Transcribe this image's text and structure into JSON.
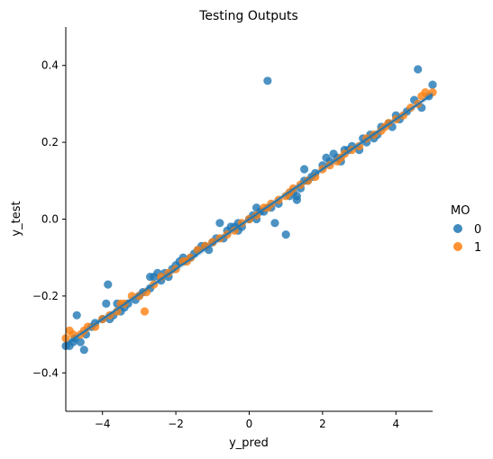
{
  "chart_data": {
    "type": "scatter",
    "title": "Testing Outputs",
    "xlabel": "y_pred",
    "ylabel": "y_test",
    "xlim": [
      -5,
      5
    ],
    "ylim": [
      -0.5,
      0.5
    ],
    "xticks": [
      -4,
      -2,
      0,
      2,
      4
    ],
    "xtick_labels": [
      "−4",
      "−2",
      "0",
      "2",
      "4"
    ],
    "yticks": [
      -0.4,
      -0.2,
      0.0,
      0.2,
      0.4
    ],
    "ytick_labels": [
      "−0.4",
      "−0.2",
      "0.0",
      "0.2",
      "0.4"
    ],
    "grid": false,
    "legend": {
      "title": "MO",
      "placement": "right"
    },
    "series": [
      {
        "name": "0",
        "color": "#1f77b4",
        "points": [
          [
            -5.0,
            -0.33
          ],
          [
            -4.9,
            -0.33
          ],
          [
            -4.8,
            -0.32
          ],
          [
            -4.75,
            -0.31
          ],
          [
            -4.7,
            -0.25
          ],
          [
            -4.6,
            -0.32
          ],
          [
            -4.5,
            -0.34
          ],
          [
            -4.45,
            -0.3
          ],
          [
            -4.3,
            -0.28
          ],
          [
            -4.2,
            -0.27
          ],
          [
            -4.0,
            -0.26
          ],
          [
            -3.9,
            -0.22
          ],
          [
            -3.85,
            -0.17
          ],
          [
            -3.8,
            -0.26
          ],
          [
            -3.7,
            -0.25
          ],
          [
            -3.6,
            -0.22
          ],
          [
            -3.5,
            -0.24
          ],
          [
            -3.4,
            -0.23
          ],
          [
            -3.3,
            -0.22
          ],
          [
            -3.1,
            -0.21
          ],
          [
            -3.0,
            -0.2
          ],
          [
            -2.9,
            -0.19
          ],
          [
            -2.7,
            -0.18
          ],
          [
            -2.6,
            -0.15
          ],
          [
            -2.5,
            -0.14
          ],
          [
            -2.4,
            -0.16
          ],
          [
            -2.3,
            -0.14
          ],
          [
            -2.2,
            -0.15
          ],
          [
            -2.1,
            -0.13
          ],
          [
            -2.0,
            -0.12
          ],
          [
            -1.9,
            -0.11
          ],
          [
            -1.8,
            -0.1
          ],
          [
            -1.6,
            -0.1
          ],
          [
            -1.5,
            -0.09
          ],
          [
            -1.4,
            -0.08
          ],
          [
            -1.2,
            -0.07
          ],
          [
            -1.1,
            -0.08
          ],
          [
            -1.0,
            -0.06
          ],
          [
            -0.9,
            -0.05
          ],
          [
            -0.8,
            -0.01
          ],
          [
            -0.7,
            -0.05
          ],
          [
            -0.6,
            -0.03
          ],
          [
            -0.5,
            -0.02
          ],
          [
            -0.4,
            -0.02
          ],
          [
            -0.3,
            -0.01
          ],
          [
            -0.2,
            -0.02
          ],
          [
            0.0,
            0.0
          ],
          [
            0.1,
            0.01
          ],
          [
            0.2,
            0.0
          ],
          [
            0.3,
            0.02
          ],
          [
            0.4,
            0.02
          ],
          [
            0.5,
            0.36
          ],
          [
            0.6,
            0.03
          ],
          [
            0.7,
            -0.01
          ],
          [
            0.8,
            0.04
          ],
          [
            1.0,
            -0.04
          ],
          [
            1.1,
            0.06
          ],
          [
            1.2,
            0.07
          ],
          [
            1.3,
            0.05
          ],
          [
            1.4,
            0.08
          ],
          [
            1.5,
            0.13
          ],
          [
            1.6,
            0.1
          ],
          [
            1.7,
            0.11
          ],
          [
            1.8,
            0.12
          ],
          [
            2.0,
            0.14
          ],
          [
            2.1,
            0.16
          ],
          [
            2.2,
            0.15
          ],
          [
            2.4,
            0.16
          ],
          [
            2.5,
            0.15
          ],
          [
            2.7,
            0.18
          ],
          [
            2.8,
            0.19
          ],
          [
            3.0,
            0.18
          ],
          [
            3.1,
            0.21
          ],
          [
            3.2,
            0.2
          ],
          [
            3.4,
            0.21
          ],
          [
            3.5,
            0.22
          ],
          [
            3.6,
            0.24
          ],
          [
            3.8,
            0.25
          ],
          [
            3.9,
            0.24
          ],
          [
            4.0,
            0.27
          ],
          [
            4.1,
            0.26
          ],
          [
            4.3,
            0.28
          ],
          [
            4.5,
            0.31
          ],
          [
            4.6,
            0.39
          ],
          [
            4.7,
            0.29
          ],
          [
            4.9,
            0.32
          ],
          [
            5.0,
            0.35
          ],
          [
            0.2,
            0.03
          ],
          [
            1.3,
            0.06
          ],
          [
            1.5,
            0.1
          ],
          [
            2.6,
            0.18
          ],
          [
            2.3,
            0.17
          ],
          [
            3.3,
            0.22
          ],
          [
            -0.3,
            -0.03
          ],
          [
            -1.3,
            -0.07
          ],
          [
            -2.7,
            -0.15
          ]
        ]
      },
      {
        "name": "1",
        "color": "#ff7f0e",
        "points": [
          [
            -5.0,
            -0.31
          ],
          [
            -4.9,
            -0.29
          ],
          [
            -4.8,
            -0.3
          ],
          [
            -4.6,
            -0.3
          ],
          [
            -4.5,
            -0.29
          ],
          [
            -4.4,
            -0.28
          ],
          [
            -4.2,
            -0.28
          ],
          [
            -4.0,
            -0.26
          ],
          [
            -3.8,
            -0.25
          ],
          [
            -3.6,
            -0.24
          ],
          [
            -3.4,
            -0.22
          ],
          [
            -3.2,
            -0.2
          ],
          [
            -3.0,
            -0.2
          ],
          [
            -2.85,
            -0.24
          ],
          [
            -2.8,
            -0.19
          ],
          [
            -2.6,
            -0.17
          ],
          [
            -2.4,
            -0.15
          ],
          [
            -2.2,
            -0.14
          ],
          [
            -2.0,
            -0.13
          ],
          [
            -1.8,
            -0.11
          ],
          [
            -1.6,
            -0.1
          ],
          [
            -1.4,
            -0.08
          ],
          [
            -1.2,
            -0.07
          ],
          [
            -1.0,
            -0.06
          ],
          [
            -0.8,
            -0.05
          ],
          [
            -0.6,
            -0.04
          ],
          [
            -0.4,
            -0.03
          ],
          [
            -0.2,
            -0.01
          ],
          [
            0.0,
            0.0
          ],
          [
            0.2,
            0.01
          ],
          [
            0.4,
            0.03
          ],
          [
            0.6,
            0.04
          ],
          [
            0.8,
            0.05
          ],
          [
            1.0,
            0.06
          ],
          [
            1.2,
            0.08
          ],
          [
            1.4,
            0.09
          ],
          [
            1.6,
            0.1
          ],
          [
            1.8,
            0.11
          ],
          [
            2.0,
            0.13
          ],
          [
            2.2,
            0.14
          ],
          [
            2.4,
            0.15
          ],
          [
            2.6,
            0.17
          ],
          [
            2.8,
            0.18
          ],
          [
            3.0,
            0.19
          ],
          [
            3.2,
            0.21
          ],
          [
            3.4,
            0.22
          ],
          [
            3.6,
            0.23
          ],
          [
            3.8,
            0.25
          ],
          [
            4.0,
            0.26
          ],
          [
            4.2,
            0.27
          ],
          [
            4.4,
            0.29
          ],
          [
            4.6,
            0.3
          ],
          [
            4.7,
            0.32
          ],
          [
            4.8,
            0.33
          ],
          [
            5.0,
            0.33
          ],
          [
            -3.5,
            -0.22
          ],
          [
            -1.7,
            -0.11
          ],
          [
            0.5,
            0.03
          ],
          [
            1.1,
            0.07
          ],
          [
            2.5,
            0.16
          ],
          [
            3.7,
            0.24
          ]
        ]
      }
    ],
    "regression": {
      "color": "#1f77b4",
      "slope": 0.065,
      "intercept": 0.0
    }
  }
}
